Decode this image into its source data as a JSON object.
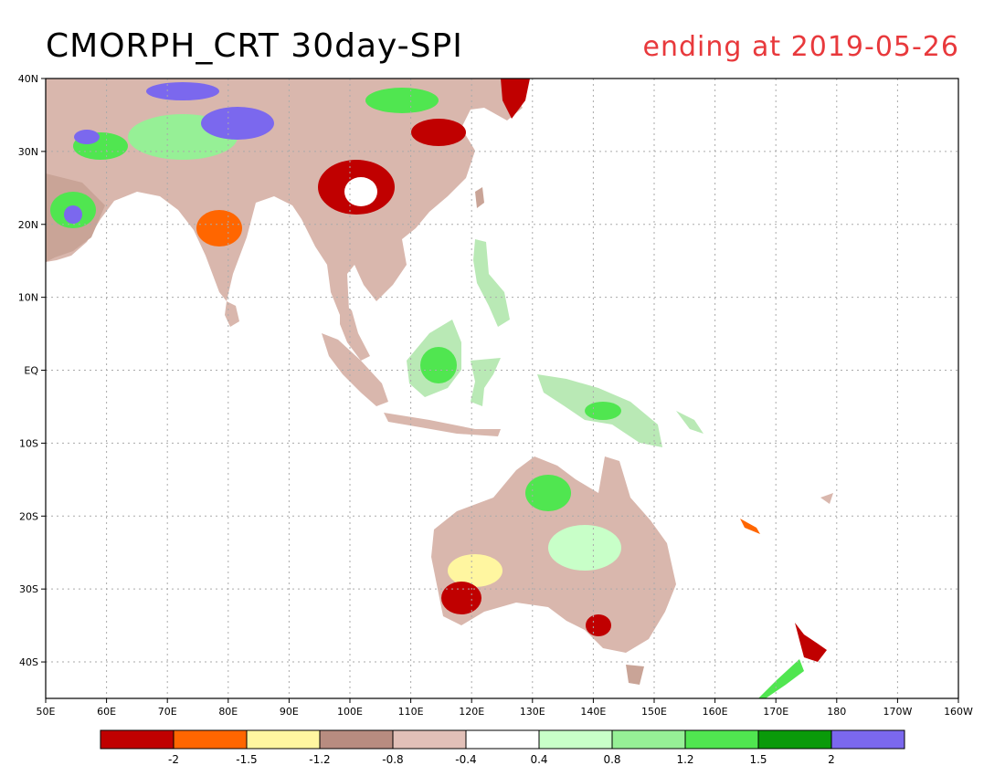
{
  "title": {
    "left": "CMORPH_CRT 30day-SPI",
    "right": "ending at 2019-05-26",
    "right_color": "#e8393c"
  },
  "map": {
    "lon_range": [
      50,
      200
    ],
    "lat_range": [
      -45,
      40
    ],
    "lon_ticks": [
      "50E",
      "60E",
      "70E",
      "80E",
      "90E",
      "100E",
      "110E",
      "120E",
      "130E",
      "140E",
      "150E",
      "160E",
      "170E",
      "180",
      "170W",
      "160W"
    ],
    "lat_ticks": [
      "40N",
      "30N",
      "20N",
      "10N",
      "EQ",
      "10S",
      "20S",
      "30S",
      "40S"
    ],
    "lat_values": [
      40,
      30,
      20,
      10,
      0,
      -10,
      -20,
      -30,
      -40
    ],
    "grid": true
  },
  "colorbar": {
    "colors": [
      "#c00000",
      "#ff6600",
      "#fff6a0",
      "#b88c80",
      "#e2c0b8",
      "#ffffff",
      "#c8ffc8",
      "#96f096",
      "#50e650",
      "#0a9a0a",
      "#7b68ee"
    ],
    "labels": [
      "-2",
      "-1.5",
      "-1.2",
      "-0.8",
      "-0.4",
      "0.4",
      "0.8",
      "1.2",
      "1.5",
      "2"
    ]
  }
}
